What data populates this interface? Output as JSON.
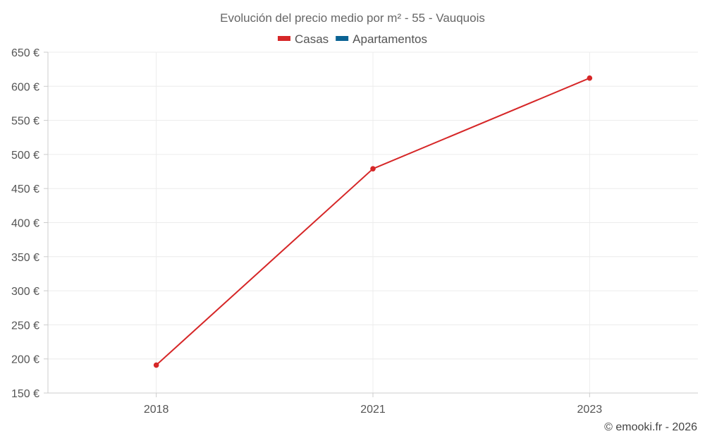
{
  "chart_data": {
    "type": "line",
    "title": "Evolución del precio medio por m² - 55 - Vauquois",
    "categories": [
      "2018",
      "2021",
      "2023"
    ],
    "series": [
      {
        "name": "Casas",
        "color": "#d62728",
        "values": [
          191,
          479,
          612
        ]
      },
      {
        "name": "Apartamentos",
        "color": "#0b6394",
        "values": [
          null,
          null,
          null
        ]
      }
    ],
    "ylim": [
      150,
      650
    ],
    "yticks": [
      150,
      200,
      250,
      300,
      350,
      400,
      450,
      500,
      550,
      600,
      650
    ],
    "y_tick_labels": [
      "150 €",
      "200 €",
      "250 €",
      "300 €",
      "350 €",
      "400 €",
      "450 €",
      "500 €",
      "550 €",
      "600 €",
      "650 €"
    ],
    "xlabel": "",
    "ylabel": "",
    "grid": true,
    "legend_position": "top-center"
  },
  "credit": "© emooki.fr - 2026"
}
